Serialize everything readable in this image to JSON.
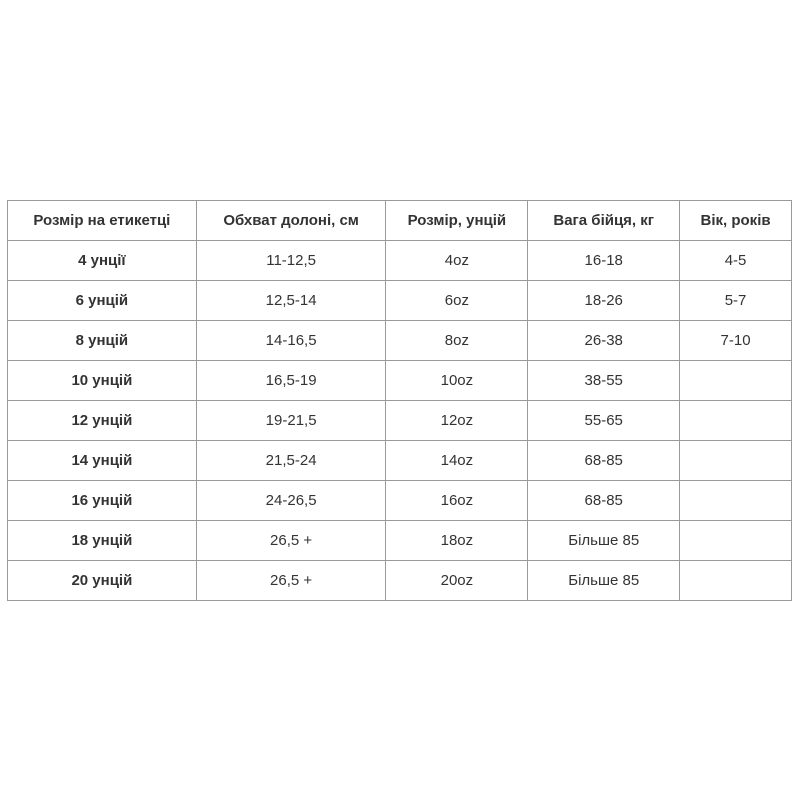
{
  "table": {
    "headers": [
      "Розмір на етикетці",
      "Обхват долоні, см",
      "Розмір, унцій",
      "Вага бійця, кг",
      "Вік, років"
    ],
    "rows": [
      [
        "4 унції",
        "11-12,5",
        "4oz",
        "16-18",
        "4-5"
      ],
      [
        "6 унцій",
        "12,5-14",
        "6oz",
        "18-26",
        "5-7"
      ],
      [
        "8 унцій",
        "14-16,5",
        "8oz",
        "26-38",
        "7-10"
      ],
      [
        "10 унцій",
        "16,5-19",
        "10oz",
        "38-55",
        ""
      ],
      [
        "12 унцій",
        "19-21,5",
        "12oz",
        "55-65",
        ""
      ],
      [
        "14 унцій",
        "21,5-24",
        "14oz",
        "68-85",
        ""
      ],
      [
        "16 унцій",
        "24-26,5",
        "16oz",
        "68-85",
        ""
      ],
      [
        "18 унцій",
        "26,5 +",
        "18oz",
        "Більше 85",
        ""
      ],
      [
        "20 унцій",
        "26,5 +",
        "20oz",
        "Більше 85",
        ""
      ]
    ]
  }
}
